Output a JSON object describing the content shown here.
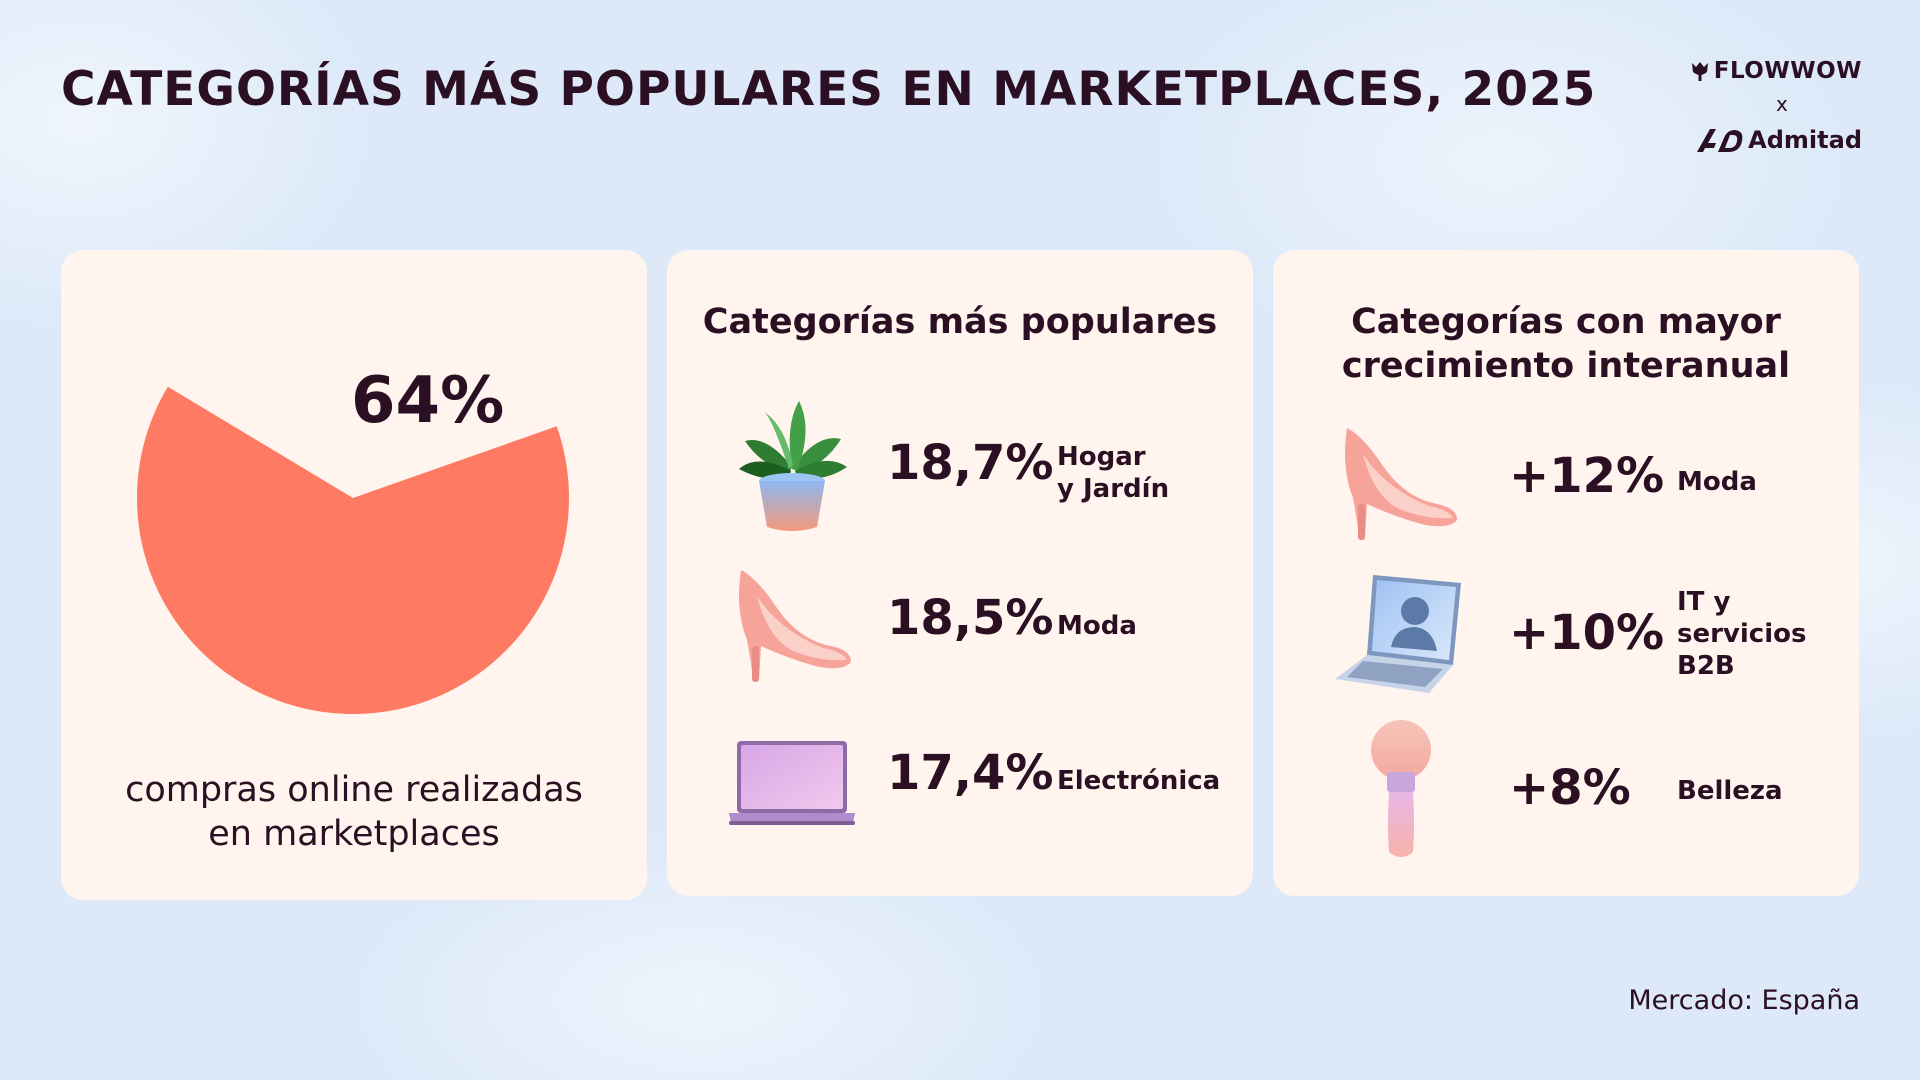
{
  "title": "CATEGORÍAS MÁS POPULARES EN MARKETPLACES, 2025",
  "brand": {
    "name1": "FLOWWOW",
    "separator": "x",
    "name2": "Admitad"
  },
  "colors": {
    "pie": "#ff7a62",
    "card": "#fff5ee",
    "text": "#2b0f22",
    "background": "#dde9f9"
  },
  "chart_data": [
    {
      "type": "pie",
      "title": "",
      "slices": [
        {
          "label": "compras online realizadas en marketplaces",
          "value": 64
        }
      ],
      "data_label": "64%",
      "caption_line1": "compras online realizadas",
      "caption_line2": "en marketplaces"
    },
    {
      "type": "table",
      "title_line1": "Categorías más populares",
      "rows": [
        {
          "icon": "plant-icon",
          "value": "18,7%",
          "label_line1": "Hogar",
          "label_line2": "y Jardín"
        },
        {
          "icon": "high-heel-icon",
          "value": "18,5%",
          "label_line1": "Moda",
          "label_line2": ""
        },
        {
          "icon": "laptop-icon",
          "value": "17,4%",
          "label_line1": "Electrónica",
          "label_line2": ""
        }
      ]
    },
    {
      "type": "table",
      "title_line1": "Categorías con mayor",
      "title_line2": "crecimiento interanual",
      "rows": [
        {
          "icon": "high-heel-icon",
          "value": "+12%",
          "label_line1": "Moda",
          "label_line2": "",
          "label_line3": ""
        },
        {
          "icon": "laptop-user-icon",
          "value": "+10%",
          "label_line1": "IT y",
          "label_line2": "servicios",
          "label_line3": "B2B"
        },
        {
          "icon": "makeup-brush-icon",
          "value": "+8%",
          "label_line1": "Belleza",
          "label_line2": "",
          "label_line3": ""
        }
      ]
    }
  ],
  "footer": {
    "market": "Mercado: España"
  }
}
